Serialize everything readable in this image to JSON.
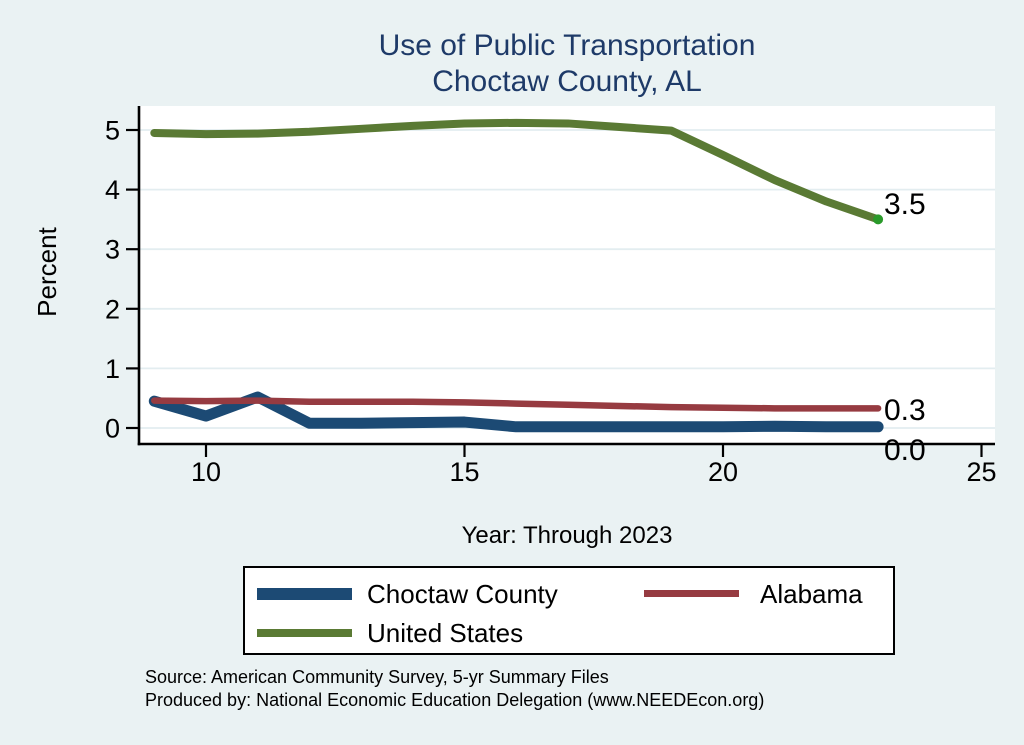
{
  "colors": {
    "background": "#eaf2f3",
    "plot_background": "#ffffff",
    "gridline": "#e3edf0",
    "axis": "#000000",
    "title_text": "#1e3a68",
    "end_dot": "#2a9a2a"
  },
  "chart_data": {
    "type": "line",
    "title": [
      "Use of Public Transportation",
      "Choctaw County, AL"
    ],
    "ylabel": "Percent",
    "xlabel": "Year: Through 2023",
    "x": [
      9,
      10,
      11,
      12,
      13,
      14,
      15,
      16,
      17,
      18,
      19,
      20,
      21,
      22,
      23
    ],
    "x_ticks": [
      10,
      15,
      20,
      25
    ],
    "y_ticks": [
      0,
      1,
      2,
      3,
      4,
      5
    ],
    "xlim": [
      8.7,
      25.3
    ],
    "ylim": [
      -0.3,
      5.4
    ],
    "grid": "horizontal",
    "legend_position": "bottom",
    "series": [
      {
        "name": "Choctaw County",
        "color": "#1c4a74",
        "values": [
          0.45,
          0.2,
          0.52,
          0.08,
          0.08,
          0.09,
          0.1,
          0.02,
          0.02,
          0.02,
          0.02,
          0.02,
          0.03,
          0.02,
          0.02
        ],
        "end_label": "0.0",
        "end_marker": false
      },
      {
        "name": "Alabama",
        "color": "#963b41",
        "values": [
          0.46,
          0.45,
          0.46,
          0.44,
          0.44,
          0.44,
          0.43,
          0.41,
          0.39,
          0.37,
          0.35,
          0.34,
          0.33,
          0.33,
          0.33
        ],
        "end_label": "0.3",
        "end_marker": false
      },
      {
        "name": "United States",
        "color": "#5a7a34",
        "values": [
          4.95,
          4.93,
          4.94,
          4.97,
          5.02,
          5.07,
          5.11,
          5.12,
          5.11,
          5.05,
          4.99,
          4.58,
          4.16,
          3.8,
          3.5
        ],
        "end_label": "3.5",
        "end_marker": true
      }
    ]
  },
  "footer": {
    "source_line": "Source: American Community Survey, 5-yr Summary Files",
    "produced_line": "Produced by: National Economic Education Delegation (www.NEEDEcon.org)"
  }
}
